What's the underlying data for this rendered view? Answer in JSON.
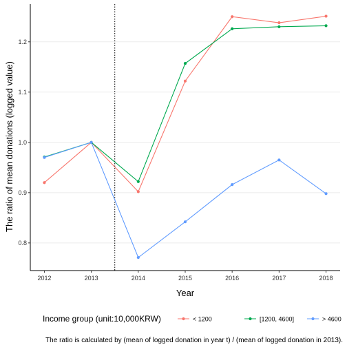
{
  "chart_data": {
    "type": "line",
    "xlabel": "Year",
    "ylabel": "The ratio of mean donations (logged value)",
    "x": [
      2012,
      2013,
      2014,
      2015,
      2016,
      2017,
      2018
    ],
    "x_tick_labels": [
      "2012",
      "2013",
      "2014",
      "2015",
      "2016",
      "2017",
      "2018"
    ],
    "y_ticks": [
      0.8,
      0.9,
      1.0,
      1.1,
      1.2
    ],
    "y_tick_labels": [
      "0.8",
      "0.9",
      "1.0",
      "1.1",
      "1.2"
    ],
    "ylim": [
      0.745,
      1.275
    ],
    "xlim": [
      2011.7,
      2018.3
    ],
    "grid": "horizontal",
    "vertical_reference_line": 2013.5,
    "legend": {
      "title": "Income group (unit:10,000KRW)",
      "placement": "bottom"
    },
    "series": [
      {
        "name": "< 1200",
        "color": "#F8766D",
        "values": [
          0.92,
          1.0,
          0.902,
          1.122,
          1.25,
          1.238,
          1.251
        ]
      },
      {
        "name": "[1200, 4600]",
        "color": "#00A94F",
        "values": [
          0.971,
          1.0,
          0.922,
          1.157,
          1.226,
          1.23,
          1.232
        ]
      },
      {
        "name": "> 4600",
        "color": "#619CFF",
        "values": [
          0.97,
          1.0,
          0.771,
          0.842,
          0.916,
          0.965,
          0.898
        ]
      }
    ],
    "caption": "The ratio is calculated by (mean of logged donation in year t) / (mean of logged donation in 2013)."
  }
}
